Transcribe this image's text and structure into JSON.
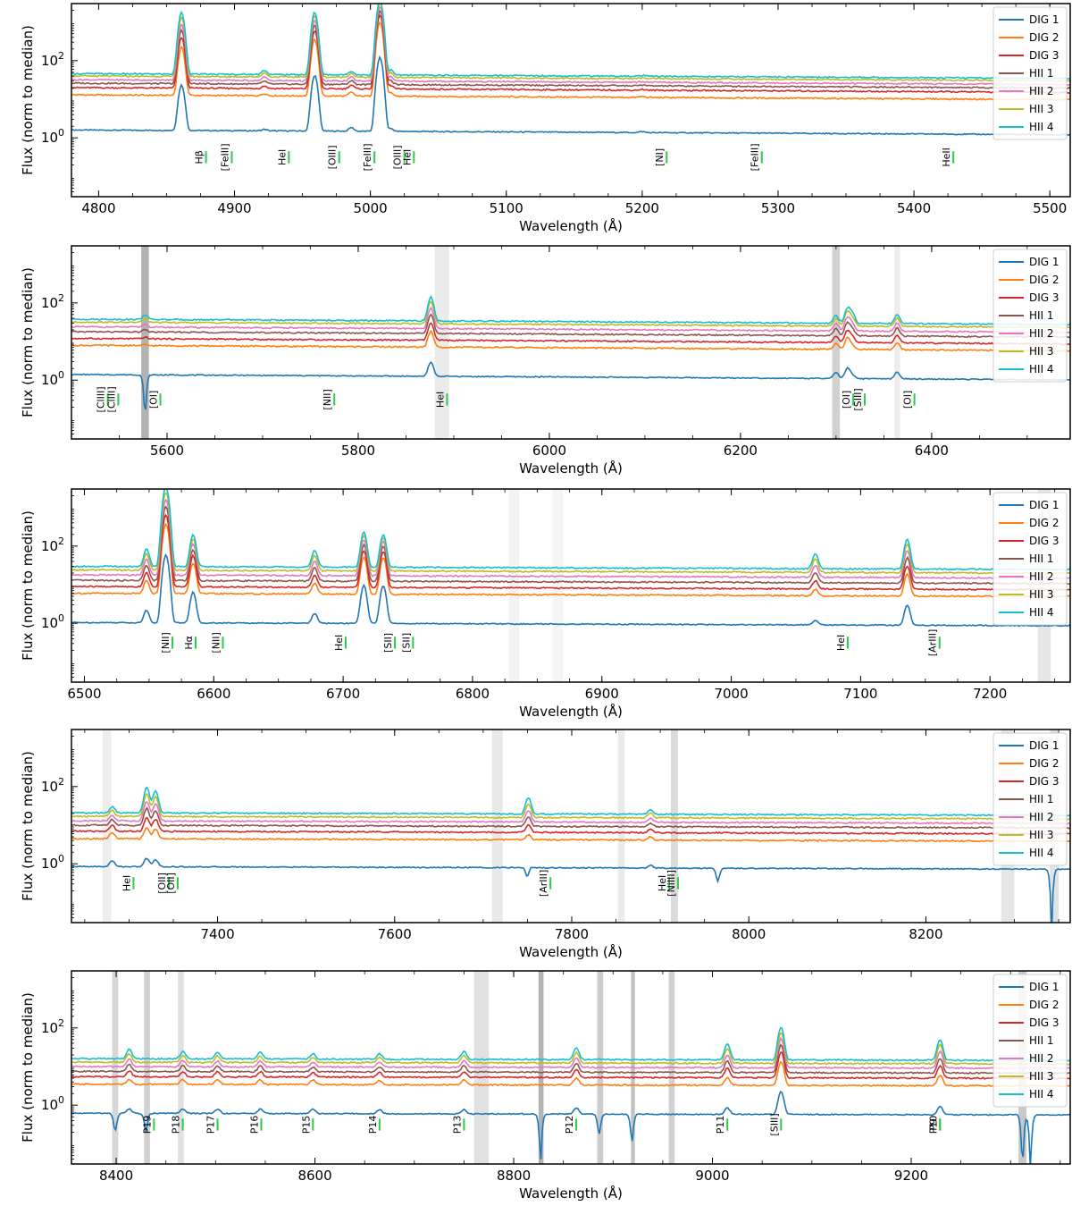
{
  "figure": {
    "xlabel": "Wavelength (Å)",
    "ylabel": "Flux (norm to median)"
  },
  "legend": [
    "DIG 1",
    "DIG 2",
    "DIG 3",
    "HII 1",
    "HII 2",
    "HII 3",
    "HII 4"
  ],
  "colors": {
    "DIG 1": "#1f77b4",
    "DIG 2": "#ff7f0e",
    "DIG 3": "#d62728",
    "HII 1": "#8c564b",
    "HII 2": "#e377c2",
    "HII 3": "#bcbd22",
    "HII 4": "#17becf",
    "line_marker": "#2ecc40",
    "sky_mask": "#9a9a9a"
  },
  "chart_data": [
    {
      "type": "line",
      "yscale": "log",
      "xlim": [
        4780,
        5515
      ],
      "ylim": [
        0.03,
        3000
      ],
      "xticks": [
        4800,
        4900,
        5000,
        5100,
        5200,
        5300,
        5400,
        5500
      ],
      "yticks": [
        {
          "value": 1,
          "label": "10^0"
        },
        {
          "value": 100,
          "label": "10^2"
        }
      ],
      "legend_position": "upper-right",
      "continuum": {
        "DIG 1": 1.6,
        "DIG 2": 13,
        "DIG 3": 20,
        "HII 1": 26,
        "HII 2": 32,
        "HII 3": 40,
        "HII 4": 46
      },
      "continuum_end_factor": 0.75,
      "peaks": [
        {
          "wavelength": 4861,
          "DIG 1": 24,
          "HII 4": 1800
        },
        {
          "wavelength": 4959,
          "DIG 1": 44,
          "HII 4": 1900
        },
        {
          "wavelength": 5007,
          "DIG 1": 130,
          "HII 4": 4000
        },
        {
          "wavelength": 4922,
          "DIG 1": 1.75,
          "HII 4": 60
        },
        {
          "wavelength": 4986,
          "DIG 1": 2.0,
          "HII 4": 58
        },
        {
          "wavelength": 5015,
          "DIG 1": 1.9,
          "HII 4": 62
        },
        {
          "wavelength": 5200,
          "DIG 1": 1.7,
          "HII 4": 48
        },
        {
          "wavelength": 5270,
          "DIG 1": 1.6,
          "HII 4": 40
        }
      ],
      "absorptions": [],
      "sky_bands": [],
      "lines": [
        {
          "label": "Hβ",
          "wavelength": 4879
        },
        {
          "label": "[FeIII]",
          "wavelength": 4898
        },
        {
          "label": "HeI",
          "wavelength": 4940
        },
        {
          "label": "[OIII]",
          "wavelength": 4977
        },
        {
          "label": "[FeIII]",
          "wavelength": 5003
        },
        {
          "label": "[OIII]",
          "wavelength": 5025
        },
        {
          "label": "HeI",
          "wavelength": 5032
        },
        {
          "label": "[NI]",
          "wavelength": 5218
        },
        {
          "label": "[FeIII]",
          "wavelength": 5288
        },
        {
          "label": "HeII",
          "wavelength": 5429
        }
      ]
    },
    {
      "type": "line",
      "yscale": "log",
      "xlim": [
        5500,
        6545
      ],
      "ylim": [
        0.03,
        3000
      ],
      "xticks": [
        5600,
        5800,
        6000,
        6200,
        6400
      ],
      "yticks": [
        {
          "value": 1,
          "label": "10^0"
        },
        {
          "value": 100,
          "label": "10^2"
        }
      ],
      "legend_position": "upper-right",
      "continuum": {
        "DIG 1": 1.4,
        "DIG 2": 8,
        "DIG 3": 12,
        "HII 1": 18,
        "HII 2": 24,
        "HII 3": 32,
        "HII 4": 38
      },
      "continuum_end_factor": 0.72,
      "peaks": [
        {
          "wavelength": 5876,
          "DIG 1": 3.2,
          "HII 4": 160
        },
        {
          "wavelength": 6300,
          "DIG 1": 2.0,
          "HII 4": 60
        },
        {
          "wavelength": 6312,
          "DIG 1": 2.6,
          "HII 4": 95
        },
        {
          "wavelength": 6317,
          "DIG 1": 1.7,
          "HII 4": 70
        },
        {
          "wavelength": 6364,
          "DIG 1": 2.1,
          "HII 4": 65
        },
        {
          "wavelength": 5577,
          "DIG 1": 1.4,
          "HII 4": 50
        }
      ],
      "absorptions": [
        {
          "wavelength": 5577,
          "depth": 0.08
        }
      ],
      "sky_bands": [
        {
          "x0": 5573,
          "x1": 5581,
          "shade": 0.75
        },
        {
          "x0": 5880,
          "x1": 5895,
          "shade": 0.2
        },
        {
          "x0": 6296,
          "x1": 6304,
          "shade": 0.45
        },
        {
          "x0": 6361,
          "x1": 6367,
          "shade": 0.18
        }
      ],
      "lines": [
        {
          "label": "[ClIII]",
          "wavelength": 5538
        },
        {
          "label": "[ClIII]",
          "wavelength": 5549
        },
        {
          "label": "[OI]",
          "wavelength": 5593
        },
        {
          "label": "[NII]",
          "wavelength": 5775
        },
        {
          "label": "HeI",
          "wavelength": 5893
        },
        {
          "label": "[OI]",
          "wavelength": 6318
        },
        {
          "label": "[SIII]",
          "wavelength": 6330
        },
        {
          "label": "[OI]",
          "wavelength": 6382
        }
      ]
    },
    {
      "type": "line",
      "yscale": "log",
      "xlim": [
        6490,
        7262
      ],
      "ylim": [
        0.03,
        3000
      ],
      "xticks": [
        6500,
        6600,
        6700,
        6800,
        6900,
        7000,
        7100,
        7200
      ],
      "yticks": [
        {
          "value": 1,
          "label": "10^0"
        },
        {
          "value": 100,
          "label": "10^2"
        }
      ],
      "legend_position": "upper-right",
      "continuum": {
        "DIG 1": 1.05,
        "DIG 2": 6,
        "DIG 3": 9,
        "HII 1": 13,
        "HII 2": 18,
        "HII 3": 24,
        "HII 4": 30
      },
      "continuum_end_factor": 0.82,
      "peaks": [
        {
          "wavelength": 6548,
          "DIG 1": 2.2,
          "HII 4": 85
        },
        {
          "wavelength": 6563,
          "DIG 1": 60,
          "HII 4": 3500
        },
        {
          "wavelength": 6584,
          "DIG 1": 6.5,
          "HII 4": 200
        },
        {
          "wavelength": 6678,
          "DIG 1": 1.9,
          "HII 4": 80
        },
        {
          "wavelength": 6716,
          "DIG 1": 10,
          "HII 4": 240
        },
        {
          "wavelength": 6731,
          "DIG 1": 10,
          "HII 4": 210
        },
        {
          "wavelength": 7065,
          "DIG 1": 1.4,
          "HII 4": 75
        },
        {
          "wavelength": 7136,
          "DIG 1": 3.5,
          "HII 4": 180
        }
      ],
      "absorptions": [],
      "sky_bands": [
        {
          "x0": 6828,
          "x1": 6836,
          "shade": 0.12
        },
        {
          "x0": 6862,
          "x1": 6870,
          "shade": 0.1
        },
        {
          "x0": 7237,
          "x1": 7247,
          "shade": 0.25
        }
      ],
      "lines": [
        {
          "label": "[NII]",
          "wavelength": 6568
        },
        {
          "label": "Hα",
          "wavelength": 6586
        },
        {
          "label": "[NII]",
          "wavelength": 6607
        },
        {
          "label": "HeI",
          "wavelength": 6702
        },
        {
          "label": "[SII]",
          "wavelength": 6740
        },
        {
          "label": "[SII]",
          "wavelength": 6754
        },
        {
          "label": "HeI",
          "wavelength": 7090
        },
        {
          "label": "[ArIII]",
          "wavelength": 7161
        }
      ]
    },
    {
      "type": "line",
      "yscale": "log",
      "xlim": [
        7235,
        8363
      ],
      "ylim": [
        0.03,
        3000
      ],
      "xticks": [
        7400,
        7600,
        7800,
        8000,
        8200
      ],
      "yticks": [
        {
          "value": 1,
          "label": "10^0"
        },
        {
          "value": 100,
          "label": "10^2"
        }
      ],
      "legend_position": "upper-right",
      "continuum": {
        "DIG 1": 0.85,
        "DIG 2": 4.5,
        "DIG 3": 7,
        "HII 1": 10,
        "HII 2": 13,
        "HII 3": 17,
        "HII 4": 21
      },
      "continuum_end_factor": 0.85,
      "peaks": [
        {
          "wavelength": 7281,
          "DIG 1": 1.2,
          "HII 4": 30
        },
        {
          "wavelength": 7320,
          "DIG 1": 1.4,
          "HII 4": 95
        },
        {
          "wavelength": 7330,
          "DIG 1": 1.3,
          "HII 4": 80
        },
        {
          "wavelength": 7751,
          "DIG 1": 1.0,
          "HII 4": 55
        },
        {
          "wavelength": 7889,
          "DIG 1": 1.0,
          "HII 4": 28
        }
      ],
      "absorptions": [
        {
          "wavelength": 8342,
          "depth": 0.02
        },
        {
          "wavelength": 7750,
          "depth": 0.5
        },
        {
          "wavelength": 7965,
          "depth": 0.45
        }
      ],
      "sky_bands": [
        {
          "x0": 7270,
          "x1": 7280,
          "shade": 0.18
        },
        {
          "x0": 7710,
          "x1": 7722,
          "shade": 0.22
        },
        {
          "x0": 7852,
          "x1": 7860,
          "shade": 0.2
        },
        {
          "x0": 7912,
          "x1": 7920,
          "shade": 0.35
        },
        {
          "x0": 8285,
          "x1": 8300,
          "shade": 0.25
        },
        {
          "x0": 8340,
          "x1": 8350,
          "shade": 0.3
        }
      ],
      "lines": [
        {
          "label": "HeI",
          "wavelength": 7305
        },
        {
          "label": "[OII]",
          "wavelength": 7345
        },
        {
          "label": "[OII]",
          "wavelength": 7355
        },
        {
          "label": "[ArIII]",
          "wavelength": 7776
        },
        {
          "label": "HeI",
          "wavelength": 7910
        },
        {
          "label": "[NiIII]",
          "wavelength": 7920
        }
      ]
    },
    {
      "type": "line",
      "yscale": "log",
      "xlim": [
        8355,
        9360
      ],
      "ylim": [
        0.03,
        3000
      ],
      "xticks": [
        8400,
        8600,
        8800,
        9000,
        9200
      ],
      "yticks": [
        {
          "value": 1,
          "label": "10^0"
        },
        {
          "value": 100,
          "label": "10^2"
        }
      ],
      "legend_position": "upper-right",
      "continuum": {
        "DIG 1": 0.62,
        "DIG 2": 3.5,
        "DIG 3": 5.5,
        "HII 1": 7.5,
        "HII 2": 10,
        "HII 3": 13,
        "HII 4": 16
      },
      "continuum_end_factor": 0.9,
      "peaks": [
        {
          "wavelength": 8413,
          "DIG 1": 0.8,
          "HII 4": 28
        },
        {
          "wavelength": 8467,
          "DIG 1": 0.8,
          "HII 4": 25
        },
        {
          "wavelength": 8502,
          "DIG 1": 0.8,
          "HII 4": 24
        },
        {
          "wavelength": 8545,
          "DIG 1": 0.8,
          "HII 4": 24
        },
        {
          "wavelength": 8598,
          "DIG 1": 0.8,
          "HII 4": 22
        },
        {
          "wavelength": 8665,
          "DIG 1": 0.8,
          "HII 4": 22
        },
        {
          "wavelength": 8750,
          "DIG 1": 0.8,
          "HII 4": 26
        },
        {
          "wavelength": 8863,
          "DIG 1": 0.9,
          "HII 4": 32
        },
        {
          "wavelength": 9015,
          "DIG 1": 0.9,
          "HII 4": 42
        },
        {
          "wavelength": 9069,
          "DIG 1": 2.4,
          "HII 4": 110
        },
        {
          "wavelength": 9229,
          "DIG 1": 1.0,
          "HII 4": 55
        }
      ],
      "absorptions": [
        {
          "wavelength": 8399,
          "depth": 0.35
        },
        {
          "wavelength": 8430,
          "depth": 0.35
        },
        {
          "wavelength": 8827,
          "depth": 0.05
        },
        {
          "wavelength": 8886,
          "depth": 0.3
        },
        {
          "wavelength": 8919,
          "depth": 0.2
        },
        {
          "wavelength": 9312,
          "depth": 0.03
        },
        {
          "wavelength": 9320,
          "depth": 0.04
        }
      ],
      "sky_bands": [
        {
          "x0": 8396,
          "x1": 8402,
          "shade": 0.4
        },
        {
          "x0": 8428,
          "x1": 8434,
          "shade": 0.45
        },
        {
          "x0": 8462,
          "x1": 8468,
          "shade": 0.3
        },
        {
          "x0": 8760,
          "x1": 8775,
          "shade": 0.3
        },
        {
          "x0": 8825,
          "x1": 8830,
          "shade": 0.75
        },
        {
          "x0": 8884,
          "x1": 8890,
          "shade": 0.5
        },
        {
          "x0": 8918,
          "x1": 8922,
          "shade": 0.6
        },
        {
          "x0": 8956,
          "x1": 8962,
          "shade": 0.45
        },
        {
          "x0": 9308,
          "x1": 9316,
          "shade": 0.55
        }
      ],
      "lines": [
        {
          "label": "P19",
          "wavelength": 8438
        },
        {
          "label": "P18",
          "wavelength": 8467
        },
        {
          "label": "P17",
          "wavelength": 8502
        },
        {
          "label": "P16",
          "wavelength": 8546
        },
        {
          "label": "P15",
          "wavelength": 8598
        },
        {
          "label": "P14",
          "wavelength": 8665
        },
        {
          "label": "P13",
          "wavelength": 8750
        },
        {
          "label": "P12",
          "wavelength": 8863
        },
        {
          "label": "P11",
          "wavelength": 9015
        },
        {
          "label": "P10",
          "wavelength": 9229
        },
        {
          "label": "[SIII]",
          "wavelength": 9069
        },
        {
          "label": "P9",
          "wavelength": 9229
        }
      ]
    }
  ]
}
